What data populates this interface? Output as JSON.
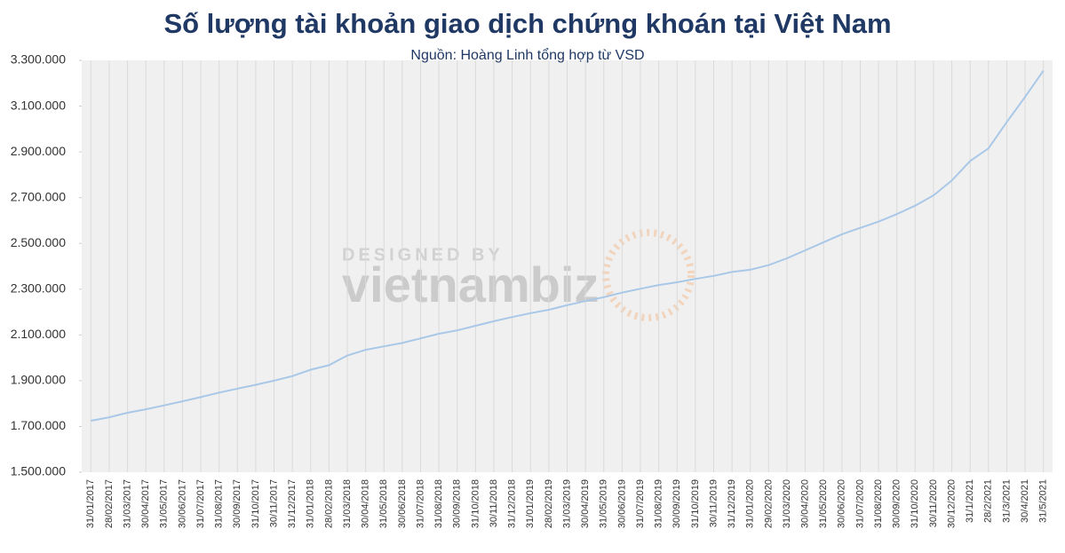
{
  "chart_data": {
    "type": "line",
    "title": "Số lượng tài khoản giao dịch chứng khoán tại Việt Nam",
    "subtitle": "Nguồn: Hoàng Linh tổng hợp từ VSD",
    "watermark": {
      "top": "DESIGNED BY",
      "brand": "vietnambiz"
    },
    "categories": [
      "31/01/2017",
      "28/02/2017",
      "31/03/2017",
      "30/04/2017",
      "31/05/2017",
      "30/06/2017",
      "31/07/2017",
      "31/08/2017",
      "30/09/2017",
      "31/10/2017",
      "30/11/2017",
      "31/12/2017",
      "31/01/2018",
      "28/02/2018",
      "31/03/2018",
      "30/04/2018",
      "31/05/2018",
      "30/06/2018",
      "31/07/2018",
      "31/08/2018",
      "30/09/2018",
      "31/10/2018",
      "30/11/2018",
      "31/12/2018",
      "31/01/2019",
      "28/02/2019",
      "31/03/2019",
      "30/04/2019",
      "31/05/2019",
      "30/06/2019",
      "31/07/2019",
      "31/08/2019",
      "30/09/2019",
      "31/10/2019",
      "30/11/2019",
      "31/12/2019",
      "31/01/2020",
      "29/02/2020",
      "31/03/2020",
      "30/04/2020",
      "31/05/2020",
      "30/06/2020",
      "31/07/2020",
      "31/08/2020",
      "30/09/2020",
      "31/10/2020",
      "30/11/2020",
      "30/12/2020",
      "31/1/2021",
      "28/2/2021",
      "31/3/2021",
      "30/4/2021",
      "31/5/2021"
    ],
    "values": [
      1725000,
      1740000,
      1760000,
      1775000,
      1792000,
      1810000,
      1828000,
      1848000,
      1865000,
      1882000,
      1900000,
      1920000,
      1948000,
      1968000,
      2010000,
      2035000,
      2050000,
      2065000,
      2085000,
      2105000,
      2120000,
      2140000,
      2160000,
      2178000,
      2195000,
      2210000,
      2230000,
      2248000,
      2265000,
      2285000,
      2302000,
      2318000,
      2330000,
      2345000,
      2358000,
      2375000,
      2385000,
      2405000,
      2435000,
      2470000,
      2505000,
      2540000,
      2568000,
      2595000,
      2628000,
      2665000,
      2710000,
      2775000,
      2860000,
      2915000,
      3030000,
      3140000,
      3255000
    ],
    "color": "#a9c8e8",
    "ylim": [
      1500000,
      3300000
    ],
    "yticks": [
      {
        "value": 1500000,
        "label": "1.500.000"
      },
      {
        "value": 1700000,
        "label": "1.700.000"
      },
      {
        "value": 1900000,
        "label": "1.900.000"
      },
      {
        "value": 2100000,
        "label": "2.100.000"
      },
      {
        "value": 2300000,
        "label": "2.300.000"
      },
      {
        "value": 2500000,
        "label": "2.500.000"
      },
      {
        "value": 2700000,
        "label": "2.700.000"
      },
      {
        "value": 2900000,
        "label": "2.900.000"
      },
      {
        "value": 3100000,
        "label": "3.100.000"
      },
      {
        "value": 3300000,
        "label": "3.300.000"
      }
    ],
    "grid": "x"
  }
}
